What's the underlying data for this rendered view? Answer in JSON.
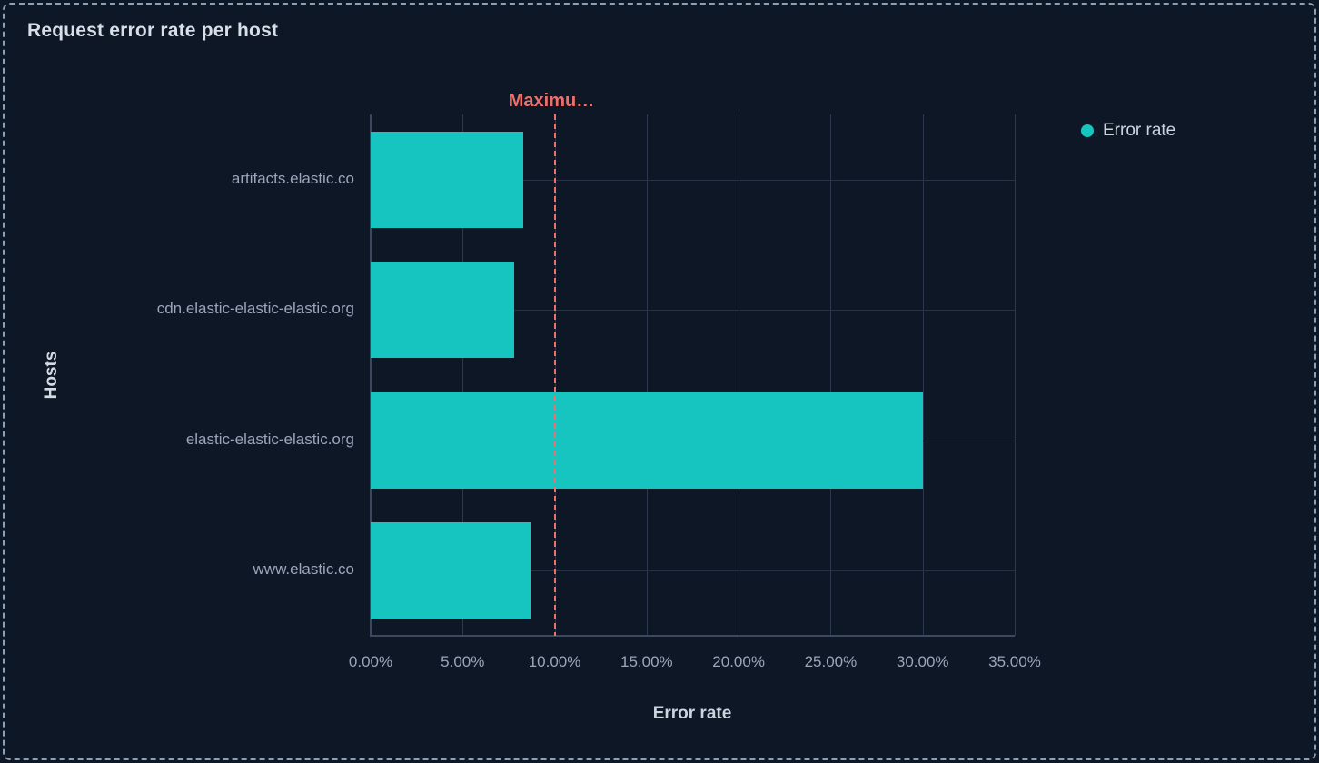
{
  "panel": {
    "title": "Request error rate per host",
    "background_color": "#0d1726",
    "border_color": "#8ba0b6"
  },
  "legend": {
    "position": "top-right",
    "items": [
      {
        "label": "Error rate",
        "marker": "circle-icon",
        "color": "#16c5c0"
      }
    ]
  },
  "chart_data": {
    "type": "bar",
    "orientation": "horizontal",
    "title": "Request error rate per host",
    "categories": [
      "artifacts.elastic.co",
      "cdn.elastic-elastic-elastic.org",
      "elastic-elastic-elastic.org",
      "www.elastic.co"
    ],
    "series": [
      {
        "name": "Error rate",
        "values": [
          8.3,
          7.8,
          30.0,
          8.7
        ],
        "color": "#16c5c0"
      }
    ],
    "value_unit": "%",
    "xlabel": "Error rate",
    "ylabel": "Hosts",
    "xlim": [
      0,
      35
    ],
    "x_ticks": [
      0,
      5,
      10,
      15,
      20,
      25,
      30,
      35
    ],
    "x_tick_labels": [
      "0.00%",
      "5.00%",
      "10.00%",
      "15.00%",
      "20.00%",
      "25.00%",
      "30.00%",
      "35.00%"
    ],
    "grid": true,
    "threshold": {
      "label": "Maximu…",
      "value": 10,
      "color": "#ef706b",
      "style": "dashed"
    },
    "bar_color": "#16c5c0",
    "gridline_color": "#2c3850",
    "tick_label_color": "#9ba6ba"
  }
}
